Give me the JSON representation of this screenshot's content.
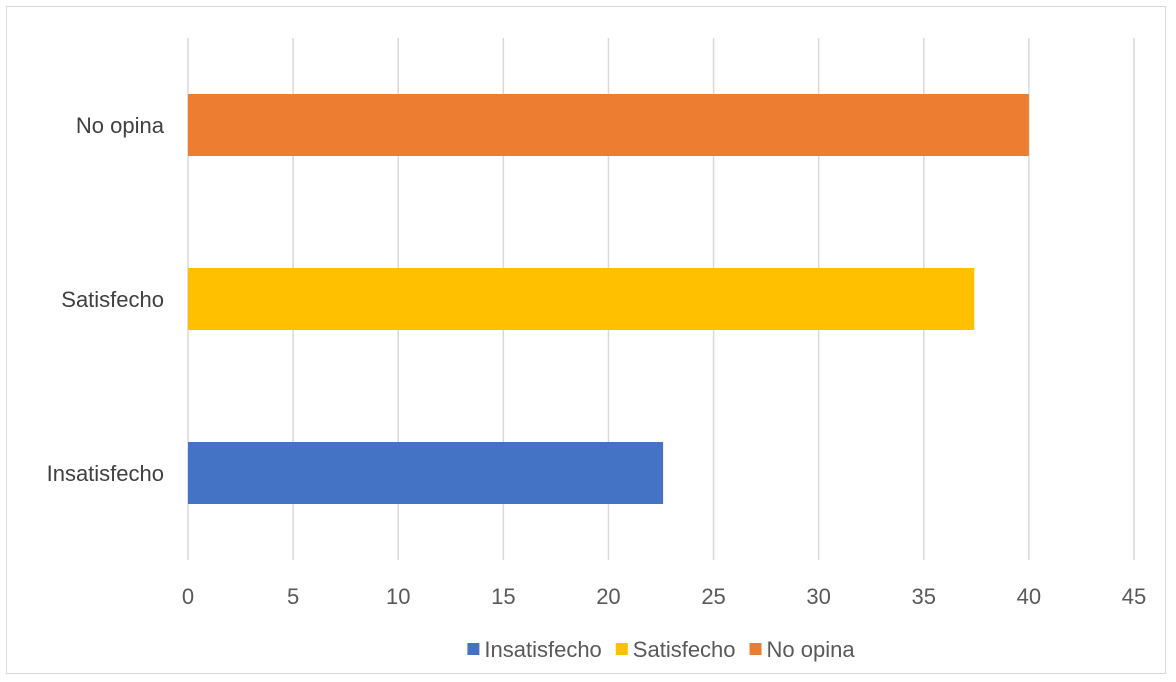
{
  "chart_data": {
    "type": "bar",
    "orientation": "horizontal",
    "categories": [
      "Insatisfecho",
      "Satisfecho",
      "No opina"
    ],
    "values": [
      22.6,
      37.4,
      40.0
    ],
    "colors": [
      "#4472c4",
      "#ffc000",
      "#ed7d31"
    ],
    "xlim": [
      0,
      45
    ],
    "xticks": [
      "0",
      "5",
      "10",
      "15",
      "20",
      "25",
      "30",
      "35",
      "40",
      "45"
    ],
    "grid": "vertical",
    "legend": {
      "placement": "bottom",
      "entries": [
        "Insatisfecho",
        "Satisfecho",
        "No opina"
      ]
    },
    "title": "",
    "xlabel": "",
    "ylabel": ""
  }
}
